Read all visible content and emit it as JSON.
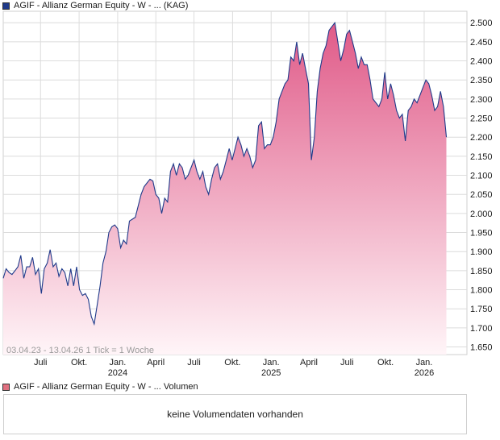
{
  "legend": {
    "price_label": "AGIF - Allianz German Equity - W - ... (KAG)",
    "volume_label": "AGIF - Allianz German Equity - W - ... Volumen"
  },
  "range_text": "03.04.23 - 13.04.26   1 Tick = 1 Woche",
  "volume_message": "keine Volumendaten vorhanden",
  "colors": {
    "line": "#1f3a8a",
    "fill_top": "#e05a88",
    "fill_bottom": "#fff5f8",
    "grid": "#dcdcdc"
  },
  "chart_data": {
    "type": "area",
    "ylim": [
      1630,
      2530
    ],
    "y_ticks": [
      1650,
      1700,
      1750,
      1800,
      1850,
      1900,
      1950,
      2000,
      2050,
      2100,
      2150,
      2200,
      2250,
      2300,
      2350,
      2400,
      2450,
      2500
    ],
    "y_tick_labels": [
      "1.650",
      "1.700",
      "1.750",
      "1.800",
      "1.850",
      "1.900",
      "1.950",
      "2.000",
      "2.050",
      "2.100",
      "2.150",
      "2.200",
      "2.250",
      "2.300",
      "2.350",
      "2.400",
      "2.450",
      "2.500"
    ],
    "x_range": [
      "2023-04-03",
      "2026-04-13"
    ],
    "x_ticks": [
      {
        "date": "2023-07-01",
        "label": "Juli",
        "year": ""
      },
      {
        "date": "2023-10-01",
        "label": "Okt.",
        "year": ""
      },
      {
        "date": "2024-01-01",
        "label": "Jan.",
        "year": "2024"
      },
      {
        "date": "2024-04-01",
        "label": "April",
        "year": ""
      },
      {
        "date": "2024-07-01",
        "label": "Juli",
        "year": ""
      },
      {
        "date": "2024-10-01",
        "label": "Okt.",
        "year": ""
      },
      {
        "date": "2025-01-01",
        "label": "Jan.",
        "year": "2025"
      },
      {
        "date": "2025-04-01",
        "label": "April",
        "year": ""
      },
      {
        "date": "2025-07-01",
        "label": "Juli",
        "year": ""
      },
      {
        "date": "2025-10-01",
        "label": "Okt.",
        "year": ""
      },
      {
        "date": "2026-01-01",
        "label": "Jan.",
        "year": "2026"
      }
    ],
    "series": [
      {
        "points": [
          [
            "2023-04-03",
            1830
          ],
          [
            "2023-04-10",
            1855
          ],
          [
            "2023-04-17",
            1845
          ],
          [
            "2023-04-24",
            1840
          ],
          [
            "2023-05-01",
            1850
          ],
          [
            "2023-05-08",
            1860
          ],
          [
            "2023-05-15",
            1890
          ],
          [
            "2023-05-22",
            1830
          ],
          [
            "2023-05-29",
            1860
          ],
          [
            "2023-06-05",
            1860
          ],
          [
            "2023-06-12",
            1885
          ],
          [
            "2023-06-19",
            1840
          ],
          [
            "2023-06-26",
            1855
          ],
          [
            "2023-07-03",
            1790
          ],
          [
            "2023-07-10",
            1855
          ],
          [
            "2023-07-17",
            1870
          ],
          [
            "2023-07-24",
            1905
          ],
          [
            "2023-07-31",
            1860
          ],
          [
            "2023-08-07",
            1870
          ],
          [
            "2023-08-14",
            1835
          ],
          [
            "2023-08-21",
            1855
          ],
          [
            "2023-08-28",
            1845
          ],
          [
            "2023-09-04",
            1810
          ],
          [
            "2023-09-11",
            1855
          ],
          [
            "2023-09-18",
            1810
          ],
          [
            "2023-09-25",
            1860
          ],
          [
            "2023-10-02",
            1800
          ],
          [
            "2023-10-09",
            1785
          ],
          [
            "2023-10-16",
            1790
          ],
          [
            "2023-10-23",
            1775
          ],
          [
            "2023-10-30",
            1730
          ],
          [
            "2023-11-06",
            1710
          ],
          [
            "2023-11-13",
            1760
          ],
          [
            "2023-11-20",
            1810
          ],
          [
            "2023-11-27",
            1870
          ],
          [
            "2023-12-04",
            1900
          ],
          [
            "2023-12-11",
            1950
          ],
          [
            "2023-12-18",
            1965
          ],
          [
            "2023-12-25",
            1970
          ],
          [
            "2024-01-01",
            1960
          ],
          [
            "2024-01-08",
            1910
          ],
          [
            "2024-01-15",
            1930
          ],
          [
            "2024-01-22",
            1920
          ],
          [
            "2024-01-29",
            1980
          ],
          [
            "2024-02-05",
            1985
          ],
          [
            "2024-02-12",
            1990
          ],
          [
            "2024-02-19",
            2020
          ],
          [
            "2024-02-26",
            2050
          ],
          [
            "2024-03-04",
            2070
          ],
          [
            "2024-03-11",
            2080
          ],
          [
            "2024-03-18",
            2090
          ],
          [
            "2024-03-25",
            2085
          ],
          [
            "2024-04-01",
            2050
          ],
          [
            "2024-04-08",
            2040
          ],
          [
            "2024-04-15",
            2000
          ],
          [
            "2024-04-22",
            2040
          ],
          [
            "2024-04-29",
            2030
          ],
          [
            "2024-05-06",
            2110
          ],
          [
            "2024-05-13",
            2130
          ],
          [
            "2024-05-20",
            2100
          ],
          [
            "2024-05-27",
            2130
          ],
          [
            "2024-06-03",
            2120
          ],
          [
            "2024-06-10",
            2090
          ],
          [
            "2024-06-17",
            2100
          ],
          [
            "2024-06-24",
            2120
          ],
          [
            "2024-07-01",
            2140
          ],
          [
            "2024-07-08",
            2110
          ],
          [
            "2024-07-15",
            2090
          ],
          [
            "2024-07-22",
            2110
          ],
          [
            "2024-07-29",
            2070
          ],
          [
            "2024-08-05",
            2050
          ],
          [
            "2024-08-12",
            2090
          ],
          [
            "2024-08-19",
            2120
          ],
          [
            "2024-08-26",
            2130
          ],
          [
            "2024-09-02",
            2090
          ],
          [
            "2024-09-09",
            2110
          ],
          [
            "2024-09-16",
            2140
          ],
          [
            "2024-09-23",
            2170
          ],
          [
            "2024-09-30",
            2140
          ],
          [
            "2024-10-07",
            2170
          ],
          [
            "2024-10-14",
            2200
          ],
          [
            "2024-10-21",
            2180
          ],
          [
            "2024-10-28",
            2150
          ],
          [
            "2024-11-04",
            2170
          ],
          [
            "2024-11-11",
            2150
          ],
          [
            "2024-11-18",
            2120
          ],
          [
            "2024-11-25",
            2140
          ],
          [
            "2024-12-02",
            2230
          ],
          [
            "2024-12-09",
            2240
          ],
          [
            "2024-12-16",
            2170
          ],
          [
            "2024-12-23",
            2180
          ],
          [
            "2024-12-30",
            2180
          ],
          [
            "2025-01-06",
            2200
          ],
          [
            "2025-01-13",
            2240
          ],
          [
            "2025-01-20",
            2300
          ],
          [
            "2025-01-27",
            2320
          ],
          [
            "2025-02-03",
            2340
          ],
          [
            "2025-02-10",
            2350
          ],
          [
            "2025-02-17",
            2410
          ],
          [
            "2025-02-24",
            2400
          ],
          [
            "2025-03-03",
            2450
          ],
          [
            "2025-03-10",
            2390
          ],
          [
            "2025-03-17",
            2420
          ],
          [
            "2025-03-24",
            2380
          ],
          [
            "2025-03-31",
            2340
          ],
          [
            "2025-04-07",
            2140
          ],
          [
            "2025-04-14",
            2200
          ],
          [
            "2025-04-21",
            2320
          ],
          [
            "2025-04-28",
            2380
          ],
          [
            "2025-05-05",
            2420
          ],
          [
            "2025-05-12",
            2440
          ],
          [
            "2025-05-19",
            2480
          ],
          [
            "2025-05-26",
            2490
          ],
          [
            "2025-06-02",
            2500
          ],
          [
            "2025-06-09",
            2450
          ],
          [
            "2025-06-16",
            2400
          ],
          [
            "2025-06-23",
            2430
          ],
          [
            "2025-06-30",
            2470
          ],
          [
            "2025-07-07",
            2480
          ],
          [
            "2025-07-14",
            2450
          ],
          [
            "2025-07-21",
            2420
          ],
          [
            "2025-07-28",
            2380
          ],
          [
            "2025-08-04",
            2410
          ],
          [
            "2025-08-11",
            2390
          ],
          [
            "2025-08-18",
            2390
          ],
          [
            "2025-08-25",
            2350
          ],
          [
            "2025-09-01",
            2300
          ],
          [
            "2025-09-08",
            2290
          ],
          [
            "2025-09-15",
            2280
          ],
          [
            "2025-09-22",
            2300
          ],
          [
            "2025-09-29",
            2370
          ],
          [
            "2025-10-06",
            2300
          ],
          [
            "2025-10-13",
            2340
          ],
          [
            "2025-10-20",
            2310
          ],
          [
            "2025-10-27",
            2270
          ],
          [
            "2025-11-03",
            2250
          ],
          [
            "2025-11-10",
            2260
          ],
          [
            "2025-11-17",
            2190
          ],
          [
            "2025-11-24",
            2270
          ],
          [
            "2025-12-01",
            2280
          ],
          [
            "2025-12-08",
            2300
          ],
          [
            "2025-12-15",
            2290
          ],
          [
            "2025-12-22",
            2310
          ],
          [
            "2025-12-29",
            2330
          ],
          [
            "2026-01-05",
            2350
          ],
          [
            "2026-01-12",
            2340
          ],
          [
            "2026-01-19",
            2310
          ],
          [
            "2026-01-26",
            2270
          ],
          [
            "2026-02-02",
            2280
          ],
          [
            "2026-02-09",
            2320
          ],
          [
            "2026-02-16",
            2280
          ],
          [
            "2026-02-23",
            2200
          ]
        ]
      }
    ]
  }
}
